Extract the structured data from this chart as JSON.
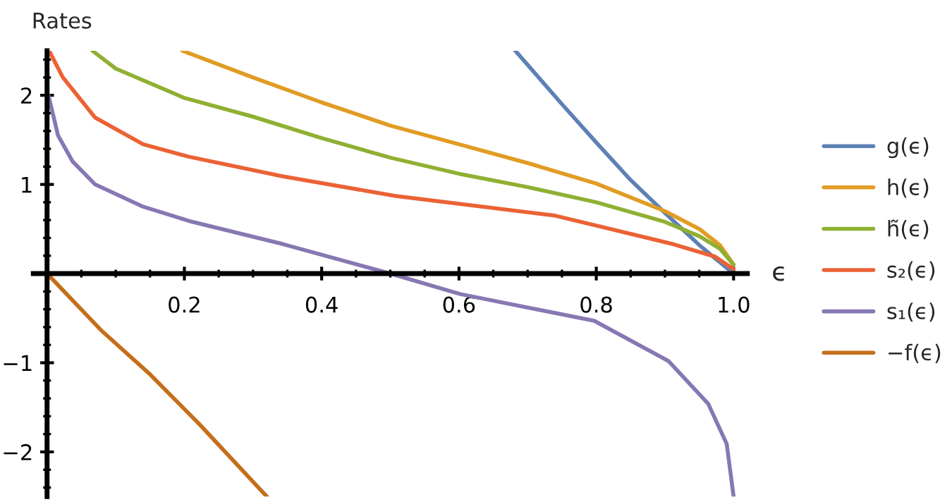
{
  "chart_data": {
    "type": "line",
    "xlabel": "ϵ",
    "ylabel": "Rates",
    "xlim": [
      -0.02,
      1.02
    ],
    "ylim": [
      -2.5,
      2.5
    ],
    "xticks": [
      0.2,
      0.4,
      0.6,
      0.8,
      {
        "value": 1.0,
        "label": "1.0"
      }
    ],
    "yticks": [
      {
        "value": -2,
        "label": "−2"
      },
      {
        "value": -1,
        "label": "−1"
      },
      1,
      2
    ],
    "grid": false,
    "legend": "right",
    "line_style": "solid",
    "marker": "none",
    "series": [
      {
        "name": "g(ϵ)",
        "color": "#5e81b5",
        "x": [
          0.682,
          0.75,
          0.8,
          0.85,
          0.9,
          0.95,
          1.0
        ],
        "values": [
          2.5,
          1.9,
          1.47,
          1.05,
          0.68,
          0.32,
          0.0
        ]
      },
      {
        "name": "h(ϵ)",
        "color": "#e19c24",
        "x": [
          0.197,
          0.3,
          0.4,
          0.5,
          0.6,
          0.7,
          0.8,
          0.9,
          0.95,
          0.98,
          1.0
        ],
        "values": [
          2.5,
          2.2,
          1.92,
          1.66,
          1.45,
          1.24,
          1.01,
          0.7,
          0.5,
          0.32,
          0.1
        ]
      },
      {
        "name": "h̃(ϵ)",
        "color": "#8fb032",
        "x": [
          0.066,
          0.1,
          0.2,
          0.3,
          0.4,
          0.5,
          0.6,
          0.7,
          0.8,
          0.9,
          0.95,
          0.98,
          1.0
        ],
        "values": [
          2.5,
          2.3,
          1.97,
          1.76,
          1.52,
          1.3,
          1.12,
          0.97,
          0.8,
          0.58,
          0.42,
          0.28,
          0.1
        ]
      },
      {
        "name": "s₂(ϵ)",
        "color": "#eb6235",
        "x": [
          0.003,
          0.023,
          0.07,
          0.14,
          0.207,
          0.344,
          0.508,
          0.74,
          0.912,
          0.973,
          1.0
        ],
        "values": [
          2.5,
          2.2,
          1.75,
          1.45,
          1.31,
          1.09,
          0.87,
          0.65,
          0.33,
          0.19,
          0.05
        ]
      },
      {
        "name": "s₁(ϵ)",
        "color": "#8778b3",
        "x": [
          0.002,
          0.016,
          0.037,
          0.07,
          0.14,
          0.207,
          0.344,
          0.5,
          0.602,
          0.797,
          0.905,
          0.963,
          0.99,
          1.0
        ],
        "values": [
          2.0,
          1.55,
          1.26,
          1.0,
          0.75,
          0.59,
          0.33,
          0.0,
          -0.23,
          -0.53,
          -0.98,
          -1.46,
          -1.91,
          -2.5
        ]
      },
      {
        "name": "−f(ϵ)",
        "color": "#c56e1a",
        "x": [
          0.0,
          0.078,
          0.15,
          0.222,
          0.32
        ],
        "values": [
          0.0,
          -0.63,
          -1.13,
          -1.69,
          -2.5
        ]
      }
    ]
  }
}
